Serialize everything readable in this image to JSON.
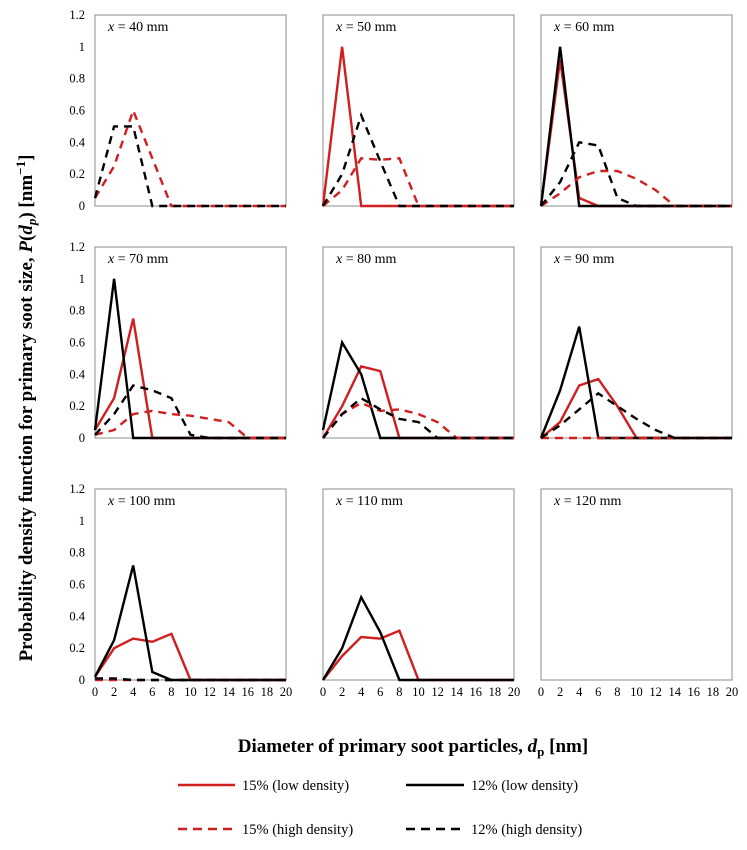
{
  "figure": {
    "ylabel_prefix": "Probability density function for primary soot size, ",
    "ylabel_fn": "P",
    "ylabel_open": "(",
    "ylabel_sub": "p",
    "ylabel_close": ") [nm",
    "ylabel_exp": "−1",
    "ylabel_end": "]",
    "xlabel_prefix": "Diameter of primary soot particles, ",
    "xlabel_var": "d",
    "xlabel_sub": "p",
    "xlabel_unit": " [nm]"
  },
  "colors": {
    "red": "#d01f1f",
    "black": "#000000",
    "panel_border": "#8c8c8c"
  },
  "legend": [
    {
      "label": "15% (low density)",
      "color": "#d01f1f",
      "dashed": false
    },
    {
      "label": "12% (low density)",
      "color": "#000000",
      "dashed": false
    },
    {
      "label": "15% (high density)",
      "color": "#d01f1f",
      "dashed": true
    },
    {
      "label": "12% (high density)",
      "color": "#000000",
      "dashed": true
    }
  ],
  "chart_data": {
    "type": "line",
    "layout": "3x3 small multiples",
    "x_ticks": [
      0,
      2,
      4,
      6,
      8,
      10,
      12,
      14,
      16,
      18,
      20
    ],
    "y_ticks": [
      0,
      0.2,
      0.4,
      0.6,
      0.8,
      1,
      1.2
    ],
    "xlim": [
      0,
      20
    ],
    "ylim": [
      0,
      1.2
    ],
    "x": [
      0,
      2,
      4,
      6,
      8,
      10,
      12,
      14,
      16,
      18,
      20
    ],
    "panels": [
      {
        "label_var": "x",
        "label_rest": " = 40 mm",
        "series": [
          {
            "name": "15% (high density)",
            "values": [
              0.05,
              0.25,
              0.6,
              0.3,
              0.0,
              0,
              0,
              0,
              0,
              0,
              0
            ]
          },
          {
            "name": "12% (high density)",
            "values": [
              0.05,
              0.5,
              0.5,
              0.0,
              0,
              0,
              0,
              0,
              0,
              0,
              0
            ]
          }
        ]
      },
      {
        "label_var": "x",
        "label_rest": " = 50 mm",
        "series": [
          {
            "name": "15% (low density)",
            "values": [
              0.0,
              1.0,
              0.0,
              0,
              0,
              0,
              0,
              0,
              0,
              0,
              0
            ]
          },
          {
            "name": "15% (high density)",
            "values": [
              0.0,
              0.1,
              0.3,
              0.29,
              0.3,
              0.0,
              0,
              0,
              0,
              0,
              0
            ]
          },
          {
            "name": "12% (high density)",
            "values": [
              0.0,
              0.2,
              0.57,
              0.28,
              0.0,
              0,
              0,
              0,
              0,
              0,
              0
            ]
          }
        ]
      },
      {
        "label_var": "x",
        "label_rest": " = 60 mm",
        "series": [
          {
            "name": "15% (low density)",
            "values": [
              0.0,
              0.92,
              0.05,
              0.0,
              0,
              0,
              0,
              0,
              0,
              0,
              0
            ]
          },
          {
            "name": "12% (low density)",
            "values": [
              0.0,
              1.0,
              0.0,
              0,
              0,
              0,
              0,
              0,
              0,
              0,
              0
            ]
          },
          {
            "name": "15% (high density)",
            "values": [
              0.0,
              0.08,
              0.18,
              0.22,
              0.22,
              0.17,
              0.1,
              0.0,
              0,
              0,
              0
            ]
          },
          {
            "name": "12% (high density)",
            "values": [
              0.0,
              0.15,
              0.4,
              0.38,
              0.05,
              0.0,
              0,
              0,
              0,
              0,
              0
            ]
          }
        ]
      },
      {
        "label_var": "x",
        "label_rest": " = 70 mm",
        "series": [
          {
            "name": "15% (low density)",
            "values": [
              0.05,
              0.25,
              0.75,
              0.0,
              0,
              0,
              0,
              0,
              0,
              0,
              0
            ]
          },
          {
            "name": "12% (low density)",
            "values": [
              0.05,
              1.0,
              0.0,
              0,
              0,
              0,
              0,
              0,
              0,
              0,
              0
            ]
          },
          {
            "name": "15% (high density)",
            "values": [
              0.02,
              0.05,
              0.15,
              0.17,
              0.15,
              0.14,
              0.12,
              0.1,
              0.0,
              0,
              0
            ]
          },
          {
            "name": "12% (high density)",
            "values": [
              0.02,
              0.15,
              0.33,
              0.3,
              0.25,
              0.02,
              0.0,
              0,
              0,
              0,
              0
            ]
          }
        ]
      },
      {
        "label_var": "x",
        "label_rest": " = 80 mm",
        "series": [
          {
            "name": "15% (low density)",
            "values": [
              0.0,
              0.2,
              0.45,
              0.42,
              0.0,
              0,
              0,
              0,
              0,
              0,
              0
            ]
          },
          {
            "name": "12% (low density)",
            "values": [
              0.05,
              0.6,
              0.4,
              0.0,
              0,
              0,
              0,
              0,
              0,
              0,
              0
            ]
          },
          {
            "name": "15% (high density)",
            "values": [
              0.0,
              0.15,
              0.22,
              0.17,
              0.18,
              0.15,
              0.1,
              0.0,
              0,
              0,
              0
            ]
          },
          {
            "name": "12% (high density)",
            "values": [
              0.0,
              0.15,
              0.25,
              0.18,
              0.12,
              0.1,
              0.0,
              0,
              0,
              0,
              0
            ]
          }
        ]
      },
      {
        "label_var": "x",
        "label_rest": " = 90 mm",
        "series": [
          {
            "name": "15% (low density)",
            "values": [
              0.0,
              0.1,
              0.33,
              0.37,
              0.2,
              0.0,
              0,
              0,
              0,
              0,
              0
            ]
          },
          {
            "name": "12% (low density)",
            "values": [
              0.0,
              0.3,
              0.7,
              0.0,
              0,
              0,
              0,
              0,
              0,
              0,
              0
            ]
          },
          {
            "name": "15% (high density)",
            "values": [
              0.0,
              0.0,
              0.0,
              0.0,
              0.0,
              0,
              0,
              0,
              0,
              0,
              0
            ]
          },
          {
            "name": "12% (high density)",
            "values": [
              0.0,
              0.08,
              0.18,
              0.28,
              0.2,
              0.12,
              0.05,
              0.0,
              0,
              0,
              0
            ]
          }
        ]
      },
      {
        "label_var": "x",
        "label_rest": " = 100 mm",
        "series": [
          {
            "name": "15% (low density)",
            "values": [
              0.02,
              0.2,
              0.26,
              0.24,
              0.29,
              0.0,
              0,
              0,
              0,
              0,
              0
            ]
          },
          {
            "name": "12% (low density)",
            "values": [
              0.02,
              0.25,
              0.72,
              0.05,
              0.0,
              0,
              0,
              0,
              0,
              0,
              0
            ]
          },
          {
            "name": "15% (high density)",
            "values": [
              0.0,
              0.0,
              0.0,
              0.0,
              0.0,
              0,
              0,
              0,
              0,
              0,
              0
            ]
          },
          {
            "name": "12% (high density)",
            "values": [
              0.01,
              0.01,
              0.0,
              0.0,
              0.0,
              0,
              0,
              0,
              0,
              0,
              0
            ]
          }
        ]
      },
      {
        "label_var": "x",
        "label_rest": " = 110 mm",
        "series": [
          {
            "name": "15% (low density)",
            "values": [
              0.0,
              0.15,
              0.27,
              0.26,
              0.31,
              0.0,
              0,
              0,
              0,
              0,
              0
            ]
          },
          {
            "name": "12% (low density)",
            "values": [
              0.0,
              0.2,
              0.52,
              0.3,
              0.0,
              0,
              0,
              0,
              0,
              0,
              0
            ]
          }
        ]
      },
      {
        "label_var": "x",
        "label_rest": " = 120 mm",
        "series": []
      }
    ]
  }
}
